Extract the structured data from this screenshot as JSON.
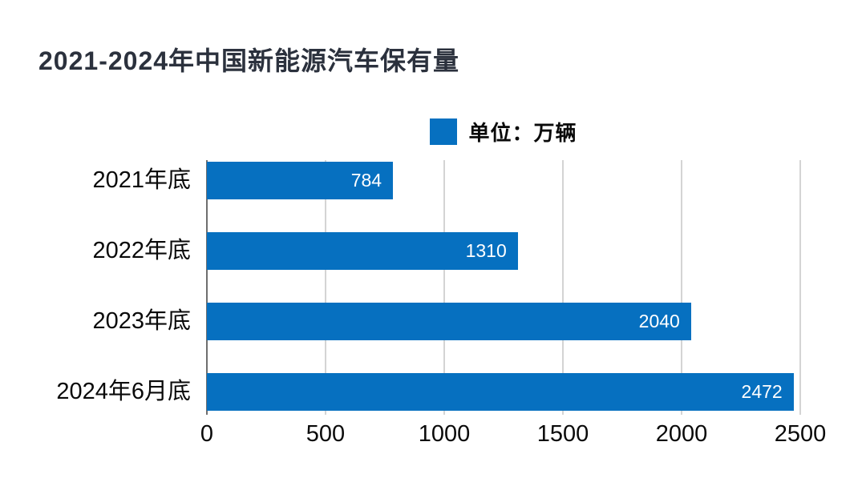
{
  "chart_data": {
    "type": "bar",
    "orientation": "horizontal",
    "title": "2021-2024年中国新能源汽车保有量",
    "legend": "单位：万辆",
    "legend_position": "top-center",
    "categories": [
      "2021年底",
      "2022年底",
      "2023年底",
      "2024年6月底"
    ],
    "values": [
      784,
      1310,
      2040,
      2472
    ],
    "x_ticks": [
      "0",
      "500",
      "1000",
      "1500",
      "2000",
      "2500"
    ],
    "xlim": [
      0,
      2500
    ],
    "grid": "vertical-only",
    "xlabel": "",
    "ylabel": ""
  },
  "colors": {
    "bar": "#0670c0",
    "title": "#2b313d",
    "grid": "#d4d4d4",
    "axis": "#6f6f6f",
    "label": "#0a0a0a",
    "value": "#ffffff",
    "background": "#ffffff"
  }
}
